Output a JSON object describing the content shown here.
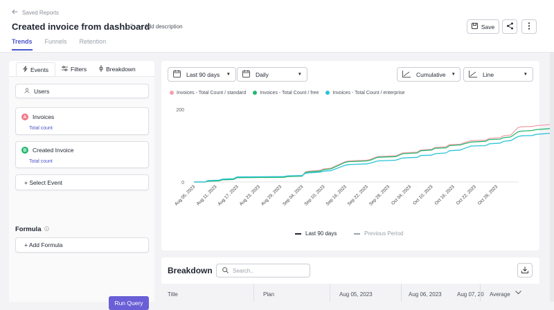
{
  "header": {
    "back_label": "Saved Reports",
    "title": "Created invoice from dashboard",
    "add_description": "+ Add description",
    "tabs": [
      {
        "label": "Trends"
      },
      {
        "label": "Funnels"
      },
      {
        "label": "Retention"
      }
    ],
    "save_label": "Save"
  },
  "left_panel": {
    "tabs": [
      {
        "label": "Events"
      },
      {
        "label": "Filters"
      },
      {
        "label": "Breakdown"
      }
    ],
    "users_label": "Users",
    "events": [
      {
        "badge": "A",
        "name": "Invoices",
        "metric": "Total count",
        "badge_color": "#f07a8a"
      },
      {
        "badge": "B",
        "name": "Created Invoice",
        "metric": "Total count",
        "badge_color": "#23b86e"
      }
    ],
    "select_event": "+ Select Event",
    "formula_label": "Formula",
    "add_formula": "+ Add Formula",
    "run_query": "Run Query"
  },
  "chart_panel": {
    "date_range": "Last 90 days",
    "interval": "Daily",
    "mode": "Cumulative",
    "chart_style": "Line",
    "current_period_label": "Last 90 days",
    "previous_period_label": "Previous Period"
  },
  "chart_data": {
    "type": "line",
    "ylim": [
      0,
      200
    ],
    "yticks": [
      "200",
      "0"
    ],
    "x_tick_labels": [
      "Aug 05, 2023",
      "Aug 11, 2023",
      "Aug 17, 2023",
      "Aug 23, 2023",
      "Aug 29, 2023",
      "Sep 04, 2023",
      "Sep 10, 2023",
      "Sep 16, 2023",
      "Sep 22, 2023",
      "Sep 28, 2023",
      "Oct 04, 2023",
      "Oct 10, 2023",
      "Oct 16, 2023",
      "Oct 22, 2023",
      "Oct 28, 2023"
    ],
    "x_range_days": [
      0,
      90
    ],
    "series": [
      {
        "name": "Invoices - Total Count / standard",
        "color": "#f4a1ad",
        "points": [
          [
            0,
            0
          ],
          [
            3,
            0
          ],
          [
            4,
            2
          ],
          [
            7,
            3
          ],
          [
            8,
            6
          ],
          [
            11,
            7
          ],
          [
            12,
            12
          ],
          [
            25,
            13
          ],
          [
            26,
            15
          ],
          [
            30,
            16
          ],
          [
            31,
            28
          ],
          [
            32,
            30
          ],
          [
            35,
            32
          ],
          [
            36,
            36
          ],
          [
            38,
            38
          ],
          [
            42,
            56
          ],
          [
            43,
            58
          ],
          [
            48,
            60
          ],
          [
            49,
            62
          ],
          [
            51,
            70
          ],
          [
            56,
            72
          ],
          [
            58,
            80
          ],
          [
            62,
            82
          ],
          [
            63,
            88
          ],
          [
            66,
            90
          ],
          [
            67,
            95
          ],
          [
            70,
            97
          ],
          [
            71,
            103
          ],
          [
            74,
            104
          ],
          [
            75,
            108
          ],
          [
            77,
            114
          ],
          [
            81,
            115
          ],
          [
            82,
            120
          ],
          [
            85,
            122
          ],
          [
            86,
            127
          ],
          [
            88,
            129
          ],
          [
            90,
            150
          ],
          [
            91,
            152
          ],
          [
            94,
            153
          ],
          [
            95,
            155
          ],
          [
            99,
            158
          ],
          [
            100,
            160
          ],
          [
            106,
            161
          ]
        ]
      },
      {
        "name": "Invoices - Total Count / free",
        "color": "#23b86e",
        "points": [
          [
            0,
            0
          ],
          [
            3,
            0
          ],
          [
            4,
            2
          ],
          [
            7,
            3
          ],
          [
            8,
            6
          ],
          [
            11,
            7
          ],
          [
            12,
            12
          ],
          [
            25,
            13
          ],
          [
            26,
            15
          ],
          [
            30,
            16
          ],
          [
            31,
            26
          ],
          [
            32,
            28
          ],
          [
            35,
            30
          ],
          [
            36,
            34
          ],
          [
            38,
            36
          ],
          [
            42,
            54
          ],
          [
            43,
            56
          ],
          [
            48,
            58
          ],
          [
            49,
            60
          ],
          [
            51,
            68
          ],
          [
            56,
            70
          ],
          [
            58,
            78
          ],
          [
            62,
            80
          ],
          [
            63,
            86
          ],
          [
            66,
            88
          ],
          [
            67,
            93
          ],
          [
            70,
            94
          ],
          [
            71,
            100
          ],
          [
            74,
            102
          ],
          [
            75,
            105
          ],
          [
            77,
            110
          ],
          [
            81,
            112
          ],
          [
            82,
            117
          ],
          [
            85,
            118
          ],
          [
            86,
            122
          ],
          [
            88,
            124
          ],
          [
            90,
            138
          ],
          [
            91,
            140
          ],
          [
            94,
            142
          ],
          [
            95,
            144
          ],
          [
            99,
            147
          ],
          [
            100,
            150
          ],
          [
            106,
            151
          ]
        ]
      },
      {
        "name": "Invoices - Total Count / enterprise",
        "color": "#29c3d9",
        "points": [
          [
            0,
            0
          ],
          [
            3,
            0
          ],
          [
            4,
            4
          ],
          [
            7,
            5
          ],
          [
            8,
            8
          ],
          [
            11,
            9
          ],
          [
            12,
            14
          ],
          [
            25,
            15
          ],
          [
            26,
            17
          ],
          [
            30,
            18
          ],
          [
            31,
            24
          ],
          [
            32,
            25
          ],
          [
            35,
            27
          ],
          [
            36,
            30
          ],
          [
            38,
            31
          ],
          [
            42,
            46
          ],
          [
            43,
            48
          ],
          [
            48,
            50
          ],
          [
            49,
            52
          ],
          [
            51,
            58
          ],
          [
            56,
            60
          ],
          [
            58,
            66
          ],
          [
            62,
            68
          ],
          [
            63,
            73
          ],
          [
            66,
            74
          ],
          [
            67,
            78
          ],
          [
            70,
            80
          ],
          [
            71,
            86
          ],
          [
            74,
            88
          ],
          [
            75,
            92
          ],
          [
            77,
            99
          ],
          [
            81,
            100
          ],
          [
            82,
            105
          ],
          [
            85,
            107
          ],
          [
            86,
            112
          ],
          [
            88,
            114
          ],
          [
            90,
            125
          ],
          [
            91,
            127
          ],
          [
            94,
            128
          ],
          [
            95,
            131
          ],
          [
            99,
            134
          ],
          [
            100,
            138
          ],
          [
            106,
            139
          ]
        ]
      }
    ]
  },
  "breakdown": {
    "title": "Breakdown",
    "search_placeholder": "Search..",
    "columns": [
      "Title",
      "Plan",
      "Aug 05, 2023",
      "Aug 06, 2023",
      "Aug 07, 20",
      "Average"
    ]
  }
}
